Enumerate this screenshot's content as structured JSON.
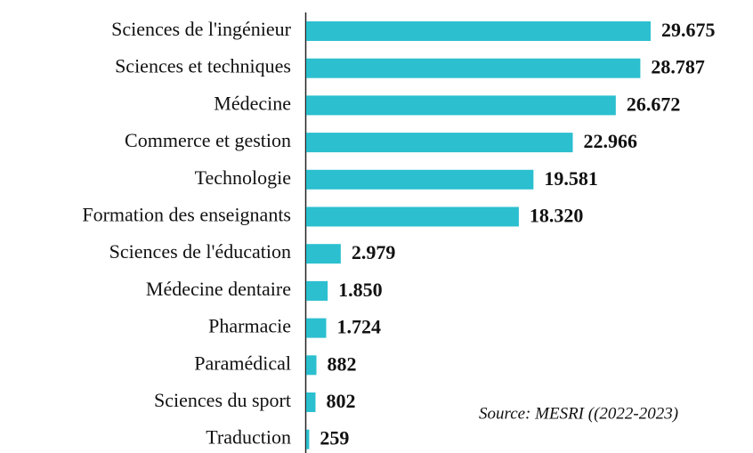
{
  "chart_data": {
    "type": "bar",
    "orientation": "horizontal",
    "categories": [
      "Sciences de l'ingénieur",
      "Sciences et techniques",
      "Médecine",
      "Commerce et gestion",
      "Technologie",
      "Formation des enseignants",
      "Sciences de l'éducation",
      "Médecine dentaire",
      "Pharmacie",
      "Paramédical",
      "Sciences du sport",
      "Traduction"
    ],
    "values": [
      29675,
      28787,
      26672,
      22966,
      19581,
      18320,
      2979,
      1850,
      1724,
      882,
      802,
      259
    ],
    "value_labels": [
      "29.675",
      "28.787",
      "26.672",
      "22.966",
      "19.581",
      "18.320",
      "2.979",
      "1.850",
      "1.724",
      "882",
      "802",
      "259"
    ],
    "color": "#2bbfcf",
    "annotation": "Source: MESRI ((2022-2023)"
  }
}
